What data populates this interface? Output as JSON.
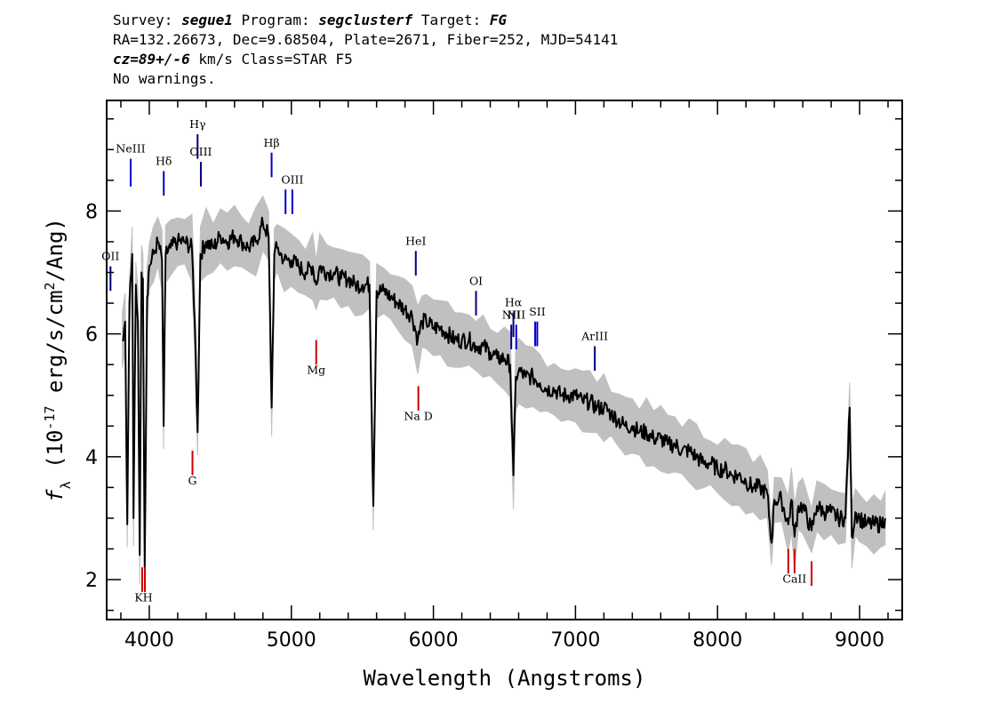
{
  "header": {
    "survey_label": "Survey:",
    "survey": "segue1",
    "program_label": "Program:",
    "program": "segclusterf",
    "target_label": "Target:",
    "target": "FG",
    "line2": "RA=132.26673, Dec=9.68504, Plate=2671, Fiber=252, MJD=54141",
    "cz": "cz=89+/-6",
    "line3_rest": " km/s Class=STAR F5",
    "line4": "No warnings."
  },
  "chart_data": {
    "type": "line",
    "xlabel": "Wavelength (Angstroms)",
    "ylabel": "f_λ (10^-17 erg/s/cm^2/Ang)",
    "xlim": [
      3700,
      9300
    ],
    "ylim": [
      1.35,
      9.8
    ],
    "x_ticks": [
      4000,
      5000,
      6000,
      7000,
      8000,
      9000
    ],
    "y_ticks": [
      2,
      4,
      6,
      8
    ],
    "grid": false,
    "series": [
      {
        "role": "flux",
        "color": "#000000",
        "points": [
          [
            3810,
            5.9
          ],
          [
            3830,
            6.2
          ],
          [
            3845,
            2.9
          ],
          [
            3860,
            6.5
          ],
          [
            3880,
            7.3
          ],
          [
            3889,
            3.0
          ],
          [
            3905,
            6.8
          ],
          [
            3920,
            6.2
          ],
          [
            3933,
            2.4
          ],
          [
            3945,
            7.0
          ],
          [
            3955,
            6.9
          ],
          [
            3968,
            2.2
          ],
          [
            3985,
            6.6
          ],
          [
            4000,
            7.1
          ],
          [
            4030,
            7.3
          ],
          [
            4060,
            7.5
          ],
          [
            4090,
            7.2
          ],
          [
            4101,
            4.5
          ],
          [
            4115,
            7.3
          ],
          [
            4150,
            7.4
          ],
          [
            4200,
            7.5
          ],
          [
            4250,
            7.5
          ],
          [
            4300,
            7.4
          ],
          [
            4320,
            6.2
          ],
          [
            4340,
            4.4
          ],
          [
            4360,
            7.3
          ],
          [
            4400,
            7.5
          ],
          [
            4450,
            7.4
          ],
          [
            4500,
            7.6
          ],
          [
            4550,
            7.5
          ],
          [
            4600,
            7.6
          ],
          [
            4650,
            7.5
          ],
          [
            4700,
            7.4
          ],
          [
            4750,
            7.5
          ],
          [
            4800,
            7.8
          ],
          [
            4840,
            7.6
          ],
          [
            4861,
            4.8
          ],
          [
            4880,
            7.3
          ],
          [
            4900,
            7.4
          ],
          [
            4950,
            7.2
          ],
          [
            5000,
            7.2
          ],
          [
            5050,
            7.1
          ],
          [
            5100,
            7.0
          ],
          [
            5150,
            7.1
          ],
          [
            5175,
            6.8
          ],
          [
            5200,
            7.1
          ],
          [
            5250,
            7.0
          ],
          [
            5300,
            7.0
          ],
          [
            5350,
            6.9
          ],
          [
            5400,
            6.9
          ],
          [
            5450,
            6.8
          ],
          [
            5500,
            6.8
          ],
          [
            5550,
            6.8
          ],
          [
            5577,
            3.2
          ],
          [
            5600,
            6.7
          ],
          [
            5650,
            6.7
          ],
          [
            5700,
            6.6
          ],
          [
            5750,
            6.5
          ],
          [
            5800,
            6.4
          ],
          [
            5850,
            6.3
          ],
          [
            5890,
            5.9
          ],
          [
            5920,
            6.2
          ],
          [
            5950,
            6.2
          ],
          [
            6000,
            6.1
          ],
          [
            6050,
            6.1
          ],
          [
            6100,
            6.0
          ],
          [
            6150,
            5.9
          ],
          [
            6200,
            5.9
          ],
          [
            6250,
            5.9
          ],
          [
            6300,
            5.8
          ],
          [
            6350,
            5.8
          ],
          [
            6400,
            5.7
          ],
          [
            6450,
            5.6
          ],
          [
            6500,
            5.6
          ],
          [
            6540,
            5.5
          ],
          [
            6563,
            3.7
          ],
          [
            6580,
            5.3
          ],
          [
            6600,
            5.4
          ],
          [
            6650,
            5.3
          ],
          [
            6700,
            5.3
          ],
          [
            6750,
            5.2
          ],
          [
            6800,
            5.1
          ],
          [
            6850,
            5.1
          ],
          [
            6900,
            5.0
          ],
          [
            6950,
            5.0
          ],
          [
            7000,
            5.0
          ],
          [
            7050,
            4.9
          ],
          [
            7100,
            4.9
          ],
          [
            7150,
            4.8
          ],
          [
            7200,
            4.8
          ],
          [
            7250,
            4.7
          ],
          [
            7300,
            4.6
          ],
          [
            7350,
            4.5
          ],
          [
            7400,
            4.5
          ],
          [
            7450,
            4.4
          ],
          [
            7500,
            4.4
          ],
          [
            7550,
            4.3
          ],
          [
            7600,
            4.3
          ],
          [
            7650,
            4.2
          ],
          [
            7700,
            4.2
          ],
          [
            7750,
            4.1
          ],
          [
            7800,
            4.1
          ],
          [
            7850,
            4.0
          ],
          [
            7900,
            3.9
          ],
          [
            7950,
            3.9
          ],
          [
            8000,
            3.8
          ],
          [
            8050,
            3.8
          ],
          [
            8100,
            3.7
          ],
          [
            8150,
            3.7
          ],
          [
            8200,
            3.6
          ],
          [
            8250,
            3.5
          ],
          [
            8300,
            3.5
          ],
          [
            8350,
            3.4
          ],
          [
            8380,
            2.6
          ],
          [
            8400,
            3.3
          ],
          [
            8450,
            3.3
          ],
          [
            8498,
            2.9
          ],
          [
            8520,
            3.3
          ],
          [
            8542,
            2.7
          ],
          [
            8570,
            3.2
          ],
          [
            8600,
            3.2
          ],
          [
            8662,
            2.8
          ],
          [
            8700,
            3.2
          ],
          [
            8750,
            3.1
          ],
          [
            8800,
            3.1
          ],
          [
            8850,
            3.0
          ],
          [
            8900,
            3.0
          ],
          [
            8930,
            4.8
          ],
          [
            8945,
            2.7
          ],
          [
            8970,
            3.1
          ],
          [
            9000,
            3.0
          ],
          [
            9050,
            2.9
          ],
          [
            9100,
            2.9
          ],
          [
            9150,
            2.9
          ],
          [
            9180,
            3.0
          ]
        ]
      },
      {
        "role": "error_envelope",
        "color": "#c0c0c0",
        "spread": 0.35
      }
    ],
    "line_markers": [
      {
        "label": "NeIII",
        "x": 3869,
        "color": "#0000cc",
        "y1": 8.4,
        "y2": 8.85,
        "label_y": 8.95,
        "side": "top"
      },
      {
        "label": "Hδ",
        "x": 4102,
        "color": "#0000cc",
        "y1": 8.25,
        "y2": 8.65,
        "label_y": 8.75,
        "side": "top"
      },
      {
        "label": "Hγ",
        "x": 4340,
        "color": "#000080",
        "y1": 8.85,
        "y2": 9.25,
        "label_y": 9.35,
        "side": "top"
      },
      {
        "label": "OIII",
        "x": 4363,
        "color": "#000080",
        "y1": 8.4,
        "y2": 8.8,
        "label_y": 8.9,
        "side": "top"
      },
      {
        "label": "Hβ",
        "x": 4861,
        "color": "#0000cc",
        "y1": 8.55,
        "y2": 8.95,
        "label_y": 9.05,
        "side": "top"
      },
      {
        "label": "OIII",
        "x": 4959,
        "color": "#0000cc",
        "y1": 7.95,
        "y2": 8.35,
        "label_y": 8.45,
        "side": "top",
        "no_label": true
      },
      {
        "label": "OIII",
        "x": 5007,
        "color": "#0000cc",
        "y1": 7.95,
        "y2": 8.35,
        "label_y": 8.45,
        "side": "top"
      },
      {
        "label": "HeI",
        "x": 5876,
        "color": "#000080",
        "y1": 6.95,
        "y2": 7.35,
        "label_y": 7.45,
        "side": "top"
      },
      {
        "label": "OI",
        "x": 6300,
        "color": "#000080",
        "y1": 6.3,
        "y2": 6.7,
        "label_y": 6.8,
        "side": "top"
      },
      {
        "label": "NII",
        "x": 6548,
        "color": "#000080",
        "y1": 5.75,
        "y2": 6.15,
        "label_y": 6.25,
        "side": "top"
      },
      {
        "label": "Hα",
        "x": 6563,
        "color": "#000080",
        "y1": 5.95,
        "y2": 6.35,
        "label_y": 6.45,
        "side": "top"
      },
      {
        "label": "NII",
        "x": 6583,
        "color": "#0000cc",
        "y1": 5.75,
        "y2": 6.15,
        "label_y": 6.25,
        "side": "top"
      },
      {
        "label": "SII",
        "x": 6716,
        "color": "#0000cc",
        "y1": 5.8,
        "y2": 6.2,
        "label_y": 6.3,
        "side": "top",
        "no_label": true
      },
      {
        "label": "SII",
        "x": 6731,
        "color": "#0000cc",
        "y1": 5.8,
        "y2": 6.2,
        "label_y": 6.3,
        "side": "top"
      },
      {
        "label": "ArIII",
        "x": 7136,
        "color": "#000080",
        "y1": 5.4,
        "y2": 5.8,
        "label_y": 5.9,
        "side": "top"
      },
      {
        "label": "OII",
        "x": 3727,
        "color": "#000080",
        "y1": 6.7,
        "y2": 7.1,
        "label_y": 7.2,
        "side": "top"
      },
      {
        "label": "G",
        "x": 4304,
        "color": "#cc0000",
        "y1": 3.7,
        "y2": 4.1,
        "label_y": 3.55,
        "side": "bottom"
      },
      {
        "label": "Mg",
        "x": 5175,
        "color": "#cc0000",
        "y1": 5.5,
        "y2": 5.9,
        "label_y": 5.35,
        "side": "bottom"
      },
      {
        "label": "Na D",
        "x": 5894,
        "color": "#cc0000",
        "y1": 4.75,
        "y2": 5.15,
        "label_y": 4.6,
        "side": "bottom"
      },
      {
        "label": "KH",
        "x": 3950,
        "color": "#cc0000",
        "y1": 1.8,
        "y2": 2.2,
        "label_y": 1.65,
        "side": "bottom",
        "no_label": true,
        "x_label": 3950
      },
      {
        "label": "KH",
        "x": 3969,
        "color": "#cc0000",
        "y1": 1.8,
        "y2": 2.2,
        "label_y": 1.65,
        "side": "bottom",
        "no_label": true
      },
      {
        "label": "KH",
        "x": 3960,
        "color": "#cc0000",
        "y1": 1.8,
        "y2": 1.8,
        "label_y": 1.65,
        "side": "bottom",
        "hidden_line": true
      },
      {
        "label": "CaII",
        "x": 8498,
        "color": "#cc0000",
        "y1": 2.1,
        "y2": 2.5,
        "label_y": 1.95,
        "side": "bottom",
        "no_label": true
      },
      {
        "label": "CaII",
        "x": 8542,
        "color": "#cc0000",
        "y1": 2.1,
        "y2": 2.5,
        "label_y": 1.95,
        "side": "bottom"
      },
      {
        "label": "CaII",
        "x": 8662,
        "color": "#cc0000",
        "y1": 1.9,
        "y2": 2.3,
        "label_y": 1.75,
        "side": "bottom",
        "no_label": true
      }
    ]
  }
}
